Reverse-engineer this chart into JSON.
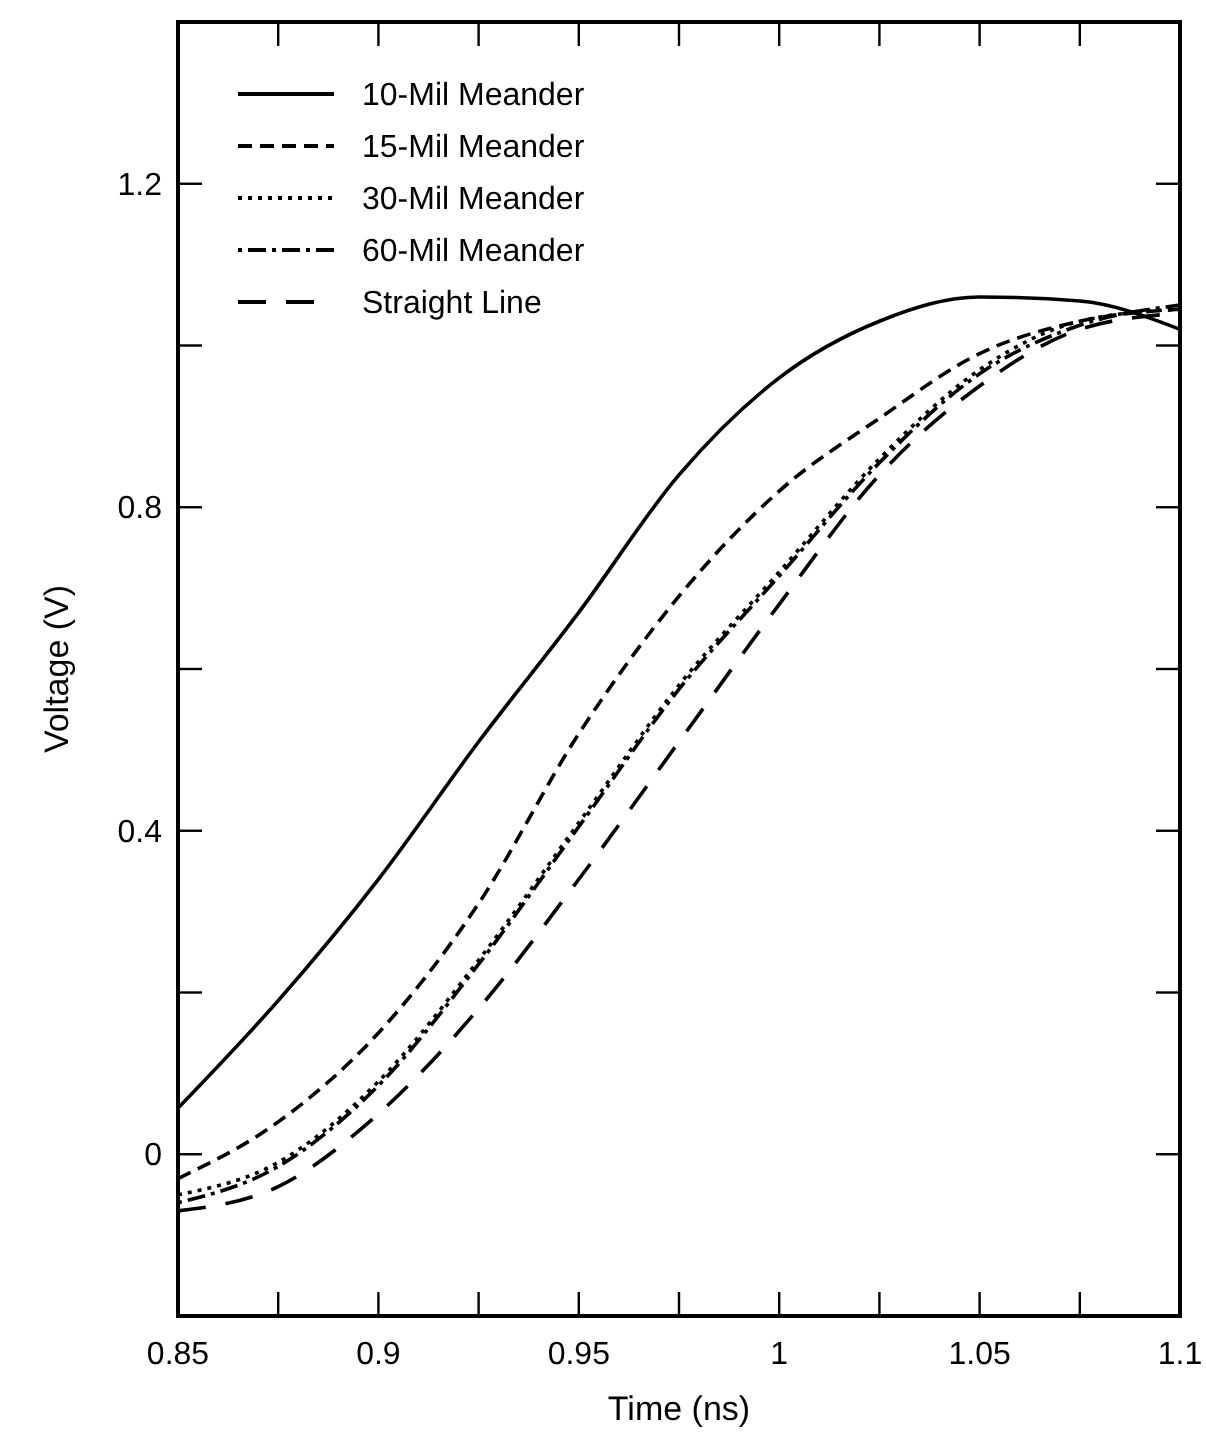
{
  "chart_data": {
    "type": "line",
    "xlabel": "Time (ns)",
    "ylabel": "Voltage (V)",
    "x": [
      0.85,
      0.875,
      0.9,
      0.925,
      0.95,
      0.975,
      1.0,
      1.025,
      1.05,
      1.075,
      1.1
    ],
    "series": [
      {
        "name": "10-Mil Meander",
        "color": "#000000",
        "line_style": "solid",
        "values": [
          0.057,
          0.19,
          0.34,
          0.51,
          0.67,
          0.84,
          0.96,
          1.03,
          1.06,
          1.055,
          1.02
        ]
      },
      {
        "name": "15-Mil Meander",
        "color": "#000000",
        "line_style": "dashed",
        "values": [
          -0.03,
          0.04,
          0.15,
          0.31,
          0.52,
          0.69,
          0.82,
          0.91,
          0.99,
          1.03,
          1.045
        ]
      },
      {
        "name": "30-Mil Meander",
        "color": "#000000",
        "line_style": "dotted",
        "values": [
          -0.05,
          -0.01,
          0.09,
          0.24,
          0.41,
          0.58,
          0.72,
          0.86,
          0.97,
          1.03,
          1.045
        ]
      },
      {
        "name": "60-Mil Meander",
        "color": "#000000",
        "line_style": "dashdot",
        "values": [
          -0.06,
          -0.015,
          0.085,
          0.235,
          0.405,
          0.575,
          0.715,
          0.855,
          0.965,
          1.025,
          1.05
        ]
      },
      {
        "name": "Straight Line",
        "color": "#000000",
        "line_style": "longdash",
        "values": [
          -0.07,
          -0.04,
          0.05,
          0.18,
          0.34,
          0.51,
          0.68,
          0.84,
          0.95,
          1.02,
          1.04
        ]
      }
    ],
    "xlim": [
      0.85,
      1.1
    ],
    "xticks": [
      0.85,
      {
        "value": 0.875,
        "label": null
      },
      0.9,
      {
        "value": 0.925,
        "label": null
      },
      0.95,
      {
        "value": 0.975,
        "label": null
      },
      {
        "value": 1.0,
        "label": "1"
      },
      {
        "value": 1.025,
        "label": null
      },
      1.05,
      {
        "value": 1.075,
        "label": null
      },
      1.1
    ],
    "ylim": [
      -0.2,
      1.4
    ],
    "yticks": [
      {
        "value": 0,
        "label": "0"
      },
      {
        "value": 0.2,
        "label": null
      },
      0.4,
      {
        "value": 0.6,
        "label": null
      },
      0.8,
      {
        "value": 1.0,
        "label": null
      },
      1.2
    ],
    "grid": false,
    "legend": "top left",
    "marker": "none"
  }
}
